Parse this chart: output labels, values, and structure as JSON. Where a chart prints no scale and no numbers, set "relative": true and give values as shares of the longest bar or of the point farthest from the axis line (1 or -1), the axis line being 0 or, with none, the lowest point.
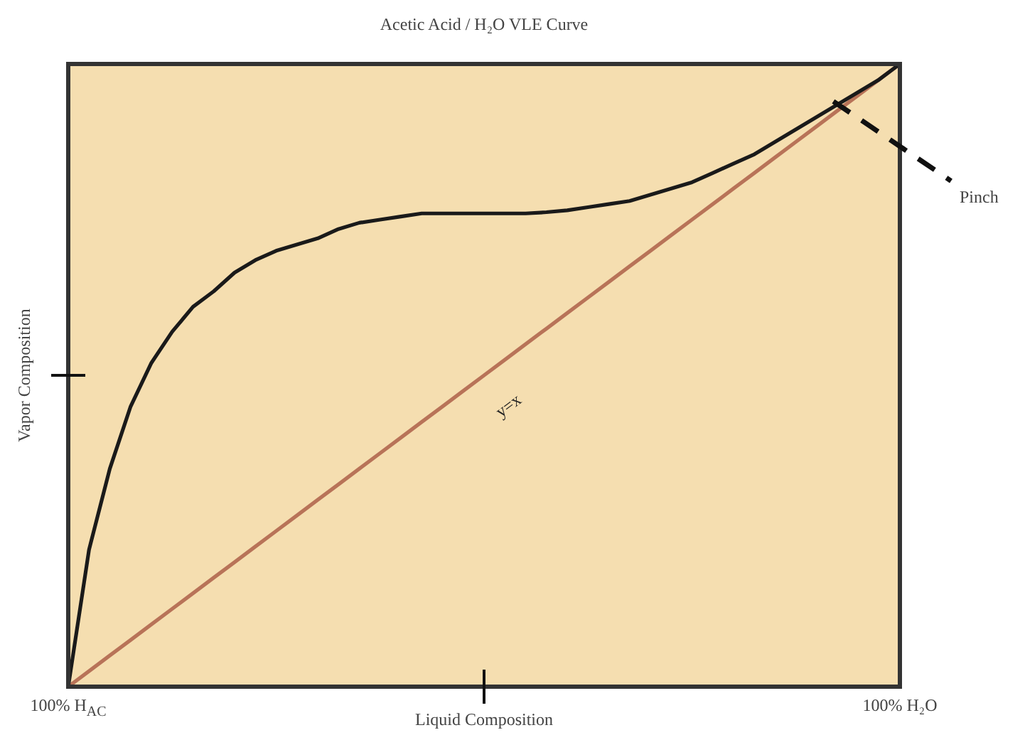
{
  "chart_data": {
    "type": "line",
    "title": "Acetic Acid / H₂O VLE Curve",
    "xlabel": "Liquid Composition",
    "ylabel": "Vapor Composition",
    "relative": true,
    "categories": [
      null,
      null,
      null,
      null,
      null,
      null,
      null,
      null,
      null,
      null,
      null,
      null,
      null,
      null,
      null,
      null,
      null,
      null,
      null,
      null,
      null,
      null,
      null,
      null,
      null,
      null,
      null,
      null,
      null,
      null,
      null,
      null,
      null,
      null,
      null,
      null,
      null,
      null,
      null,
      null,
      null
    ],
    "series": [
      {
        "color": "#1a1a1a",
        "values": [
          0,
          0.22,
          0.35,
          0.45,
          0.52,
          0.57,
          0.61,
          0.635,
          0.665,
          0.685,
          0.7,
          0.71,
          0.72,
          0.735,
          0.745,
          0.75,
          0.755,
          0.76,
          0.76,
          0.76,
          0.76,
          0.76,
          0.76,
          0.762,
          0.765,
          0.77,
          0.775,
          0.78,
          0.79,
          0.8,
          0.81,
          0.825,
          0.84,
          0.855,
          0.875,
          0.895,
          0.915,
          0.935,
          0.955,
          0.975,
          1
        ]
      },
      {
        "color": "#b87358",
        "values": [
          0,
          0.025,
          0.05,
          0.075,
          0.1,
          0.125,
          0.15,
          0.175,
          0.2,
          0.225,
          0.25,
          0.275,
          0.3,
          0.325,
          0.35,
          0.375,
          0.4,
          0.425,
          0.45,
          0.475,
          0.5,
          0.525,
          0.55,
          0.575,
          0.6,
          0.625,
          0.65,
          0.675,
          0.7,
          0.725,
          0.75,
          0.775,
          0.8,
          0.825,
          0.85,
          0.875,
          0.9,
          0.925,
          0.95,
          0.975,
          1
        ]
      }
    ],
    "annotations": [
      "100% H$_{AC}$",
      "y=x",
      "100% H₂O",
      "Pinch"
    ],
    "grid": false,
    "legend": false,
    "marker": "none",
    "line_style": "solid"
  }
}
